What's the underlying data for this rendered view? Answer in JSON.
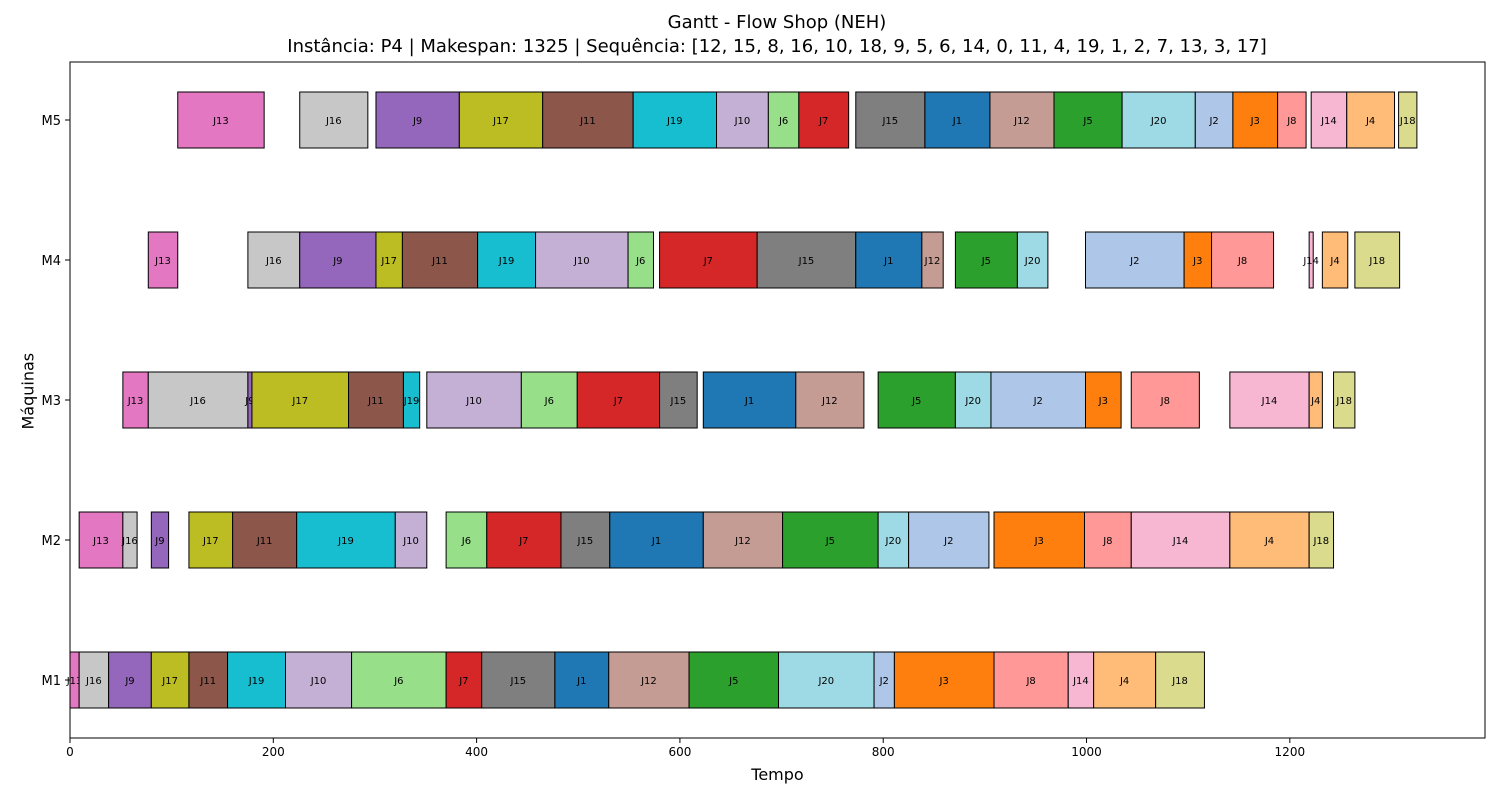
{
  "chart_data": {
    "type": "gantt",
    "title": "Gantt - Flow Shop (NEH)",
    "subtitle": "Instância: P4 | Makespan: 1325 | Sequência: [12, 15, 8, 16, 10, 18, 9, 5, 6, 14, 0, 11, 4, 19, 1, 2, 7, 13, 3, 17]",
    "xlabel": "Tempo",
    "ylabel": "Máquinas",
    "xlim": [
      0,
      1392
    ],
    "xticks": [
      0,
      200,
      400,
      600,
      800,
      1000,
      1200
    ],
    "machines": [
      "M1",
      "M2",
      "M3",
      "M4",
      "M5"
    ],
    "job_colors": {
      "J1": "#1f77b4",
      "J2": "#aec7e8",
      "J3": "#ff7f0e",
      "J4": "#ffbb78",
      "J5": "#2ca02c",
      "J6": "#98df8a",
      "J7": "#d62728",
      "J8": "#ff9896",
      "J9": "#9467bd",
      "J10": "#c5b0d5",
      "J11": "#8c564b",
      "J12": "#c49c94",
      "J13": "#e377c2",
      "J14": "#f7b6d2",
      "J15": "#7f7f7f",
      "J16": "#c7c7c7",
      "J17": "#bcbd22",
      "J18": "#dbdb8d",
      "J19": "#17becf",
      "J20": "#9edae5"
    },
    "tasks": {
      "M1": [
        {
          "job": "J13",
          "start": 0,
          "end": 9
        },
        {
          "job": "J16",
          "start": 9,
          "end": 38
        },
        {
          "job": "J9",
          "start": 38,
          "end": 80
        },
        {
          "job": "J17",
          "start": 80,
          "end": 117
        },
        {
          "job": "J11",
          "start": 117,
          "end": 155
        },
        {
          "job": "J19",
          "start": 155,
          "end": 212
        },
        {
          "job": "J10",
          "start": 212,
          "end": 277
        },
        {
          "job": "J6",
          "start": 277,
          "end": 370
        },
        {
          "job": "J7",
          "start": 370,
          "end": 405
        },
        {
          "job": "J15",
          "start": 405,
          "end": 477
        },
        {
          "job": "J1",
          "start": 477,
          "end": 530
        },
        {
          "job": "J12",
          "start": 530,
          "end": 609
        },
        {
          "job": "J5",
          "start": 609,
          "end": 697
        },
        {
          "job": "J20",
          "start": 697,
          "end": 791
        },
        {
          "job": "J2",
          "start": 791,
          "end": 811
        },
        {
          "job": "J3",
          "start": 811,
          "end": 909
        },
        {
          "job": "J8",
          "start": 909,
          "end": 982
        },
        {
          "job": "J14",
          "start": 982,
          "end": 1007
        },
        {
          "job": "J4",
          "start": 1007,
          "end": 1068
        },
        {
          "job": "J18",
          "start": 1068,
          "end": 1116
        }
      ],
      "M2": [
        {
          "job": "J13",
          "start": 9,
          "end": 52
        },
        {
          "job": "J16",
          "start": 52,
          "end": 66
        },
        {
          "job": "J9",
          "start": 80,
          "end": 97
        },
        {
          "job": "J17",
          "start": 117,
          "end": 160
        },
        {
          "job": "J11",
          "start": 160,
          "end": 223
        },
        {
          "job": "J19",
          "start": 223,
          "end": 320
        },
        {
          "job": "J10",
          "start": 320,
          "end": 351
        },
        {
          "job": "J6",
          "start": 370,
          "end": 410
        },
        {
          "job": "J7",
          "start": 410,
          "end": 483
        },
        {
          "job": "J15",
          "start": 483,
          "end": 531
        },
        {
          "job": "J1",
          "start": 531,
          "end": 623
        },
        {
          "job": "J12",
          "start": 623,
          "end": 701
        },
        {
          "job": "J5",
          "start": 701,
          "end": 795
        },
        {
          "job": "J20",
          "start": 795,
          "end": 825
        },
        {
          "job": "J2",
          "start": 825,
          "end": 904
        },
        {
          "job": "J3",
          "start": 909,
          "end": 998
        },
        {
          "job": "J8",
          "start": 998,
          "end": 1044
        },
        {
          "job": "J14",
          "start": 1044,
          "end": 1141
        },
        {
          "job": "J4",
          "start": 1141,
          "end": 1219
        },
        {
          "job": "J18",
          "start": 1219,
          "end": 1243
        }
      ],
      "M3": [
        {
          "job": "J13",
          "start": 52,
          "end": 77
        },
        {
          "job": "J16",
          "start": 77,
          "end": 175
        },
        {
          "job": "J9",
          "start": 175,
          "end": 179
        },
        {
          "job": "J17",
          "start": 179,
          "end": 274
        },
        {
          "job": "J11",
          "start": 274,
          "end": 328
        },
        {
          "job": "J19",
          "start": 328,
          "end": 344
        },
        {
          "job": "J10",
          "start": 351,
          "end": 444
        },
        {
          "job": "J6",
          "start": 444,
          "end": 499
        },
        {
          "job": "J7",
          "start": 499,
          "end": 580
        },
        {
          "job": "J15",
          "start": 580,
          "end": 617
        },
        {
          "job": "J1",
          "start": 623,
          "end": 714
        },
        {
          "job": "J12",
          "start": 714,
          "end": 781
        },
        {
          "job": "J5",
          "start": 795,
          "end": 871
        },
        {
          "job": "J20",
          "start": 871,
          "end": 906
        },
        {
          "job": "J2",
          "start": 906,
          "end": 999
        },
        {
          "job": "J3",
          "start": 999,
          "end": 1034
        },
        {
          "job": "J8",
          "start": 1044,
          "end": 1111
        },
        {
          "job": "J14",
          "start": 1141,
          "end": 1219
        },
        {
          "job": "J4",
          "start": 1219,
          "end": 1232
        },
        {
          "job": "J18",
          "start": 1243,
          "end": 1264
        }
      ],
      "M4": [
        {
          "job": "J13",
          "start": 77,
          "end": 106
        },
        {
          "job": "J16",
          "start": 175,
          "end": 226
        },
        {
          "job": "J9",
          "start": 226,
          "end": 301
        },
        {
          "job": "J17",
          "start": 301,
          "end": 327
        },
        {
          "job": "J11",
          "start": 327,
          "end": 401
        },
        {
          "job": "J19",
          "start": 401,
          "end": 458
        },
        {
          "job": "J10",
          "start": 458,
          "end": 549
        },
        {
          "job": "J6",
          "start": 549,
          "end": 574
        },
        {
          "job": "J7",
          "start": 580,
          "end": 676
        },
        {
          "job": "J15",
          "start": 676,
          "end": 773
        },
        {
          "job": "J1",
          "start": 773,
          "end": 838
        },
        {
          "job": "J12",
          "start": 838,
          "end": 859
        },
        {
          "job": "J5",
          "start": 871,
          "end": 932
        },
        {
          "job": "J20",
          "start": 932,
          "end": 962
        },
        {
          "job": "J2",
          "start": 999,
          "end": 1096
        },
        {
          "job": "J3",
          "start": 1096,
          "end": 1123
        },
        {
          "job": "J8",
          "start": 1123,
          "end": 1184
        },
        {
          "job": "J14",
          "start": 1219,
          "end": 1223
        },
        {
          "job": "J4",
          "start": 1232,
          "end": 1257
        },
        {
          "job": "J18",
          "start": 1264,
          "end": 1308
        }
      ],
      "M5": [
        {
          "job": "J13",
          "start": 106,
          "end": 191
        },
        {
          "job": "J16",
          "start": 226,
          "end": 293
        },
        {
          "job": "J9",
          "start": 301,
          "end": 383
        },
        {
          "job": "J17",
          "start": 383,
          "end": 465
        },
        {
          "job": "J11",
          "start": 465,
          "end": 554
        },
        {
          "job": "J19",
          "start": 554,
          "end": 636
        },
        {
          "job": "J10",
          "start": 636,
          "end": 687
        },
        {
          "job": "J6",
          "start": 687,
          "end": 717
        },
        {
          "job": "J7",
          "start": 717,
          "end": 766
        },
        {
          "job": "J15",
          "start": 773,
          "end": 841
        },
        {
          "job": "J1",
          "start": 841,
          "end": 905
        },
        {
          "job": "J12",
          "start": 905,
          "end": 968
        },
        {
          "job": "J5",
          "start": 968,
          "end": 1035
        },
        {
          "job": "J20",
          "start": 1035,
          "end": 1107
        },
        {
          "job": "J2",
          "start": 1107,
          "end": 1144
        },
        {
          "job": "J3",
          "start": 1144,
          "end": 1188
        },
        {
          "job": "J8",
          "start": 1188,
          "end": 1216
        },
        {
          "job": "J14",
          "start": 1221,
          "end": 1256
        },
        {
          "job": "J4",
          "start": 1256,
          "end": 1303
        },
        {
          "job": "J18",
          "start": 1307,
          "end": 1325
        }
      ]
    }
  }
}
